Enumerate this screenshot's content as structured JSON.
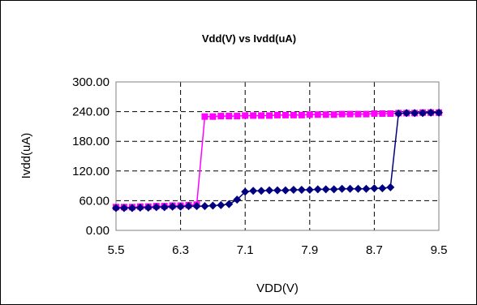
{
  "chart_data": {
    "type": "line",
    "title": "Vdd(V) vs Ivdd(uA)",
    "xlabel": "VDD(V)",
    "ylabel": "Ivdd(uA)",
    "xlim": [
      5.5,
      9.5
    ],
    "ylim": [
      0,
      300
    ],
    "x_ticks": [
      "5.5",
      "6.3",
      "7.1",
      "7.9",
      "8.7",
      "9.5"
    ],
    "y_ticks": [
      "0.00",
      "60.00",
      "120.00",
      "180.00",
      "240.00",
      "300.00"
    ],
    "grid": "dashed",
    "legend": "none",
    "series": [
      {
        "color": "#ff00ff",
        "marker": "square",
        "x": [
          5.5,
          5.6,
          5.7,
          5.8,
          5.9,
          6.0,
          6.1,
          6.2,
          6.3,
          6.4,
          6.5,
          6.6,
          6.7,
          6.8,
          6.9,
          7.0,
          7.1,
          7.2,
          7.3,
          7.4,
          7.5,
          7.6,
          7.7,
          7.8,
          7.9,
          8.0,
          8.1,
          8.2,
          8.3,
          8.4,
          8.5,
          8.6,
          8.7,
          8.8,
          8.9,
          9.0,
          9.1,
          9.2,
          9.3,
          9.4,
          9.5
        ],
        "y": [
          47,
          47,
          47,
          48,
          48,
          49,
          49,
          50,
          50,
          51,
          52,
          230,
          230,
          231,
          231,
          231,
          232,
          232,
          232,
          232,
          233,
          233,
          233,
          233,
          234,
          234,
          234,
          234,
          235,
          235,
          235,
          235,
          236,
          236,
          236,
          237,
          237,
          237,
          238,
          238,
          238
        ]
      },
      {
        "color": "#000080",
        "marker": "diamond",
        "x": [
          5.5,
          5.6,
          5.7,
          5.8,
          5.9,
          6.0,
          6.1,
          6.2,
          6.3,
          6.4,
          6.5,
          6.6,
          6.7,
          6.8,
          6.9,
          7.0,
          7.1,
          7.2,
          7.3,
          7.4,
          7.5,
          7.6,
          7.7,
          7.8,
          7.9,
          8.0,
          8.1,
          8.2,
          8.3,
          8.4,
          8.5,
          8.6,
          8.7,
          8.8,
          8.9,
          9.0,
          9.1,
          9.2,
          9.3,
          9.4,
          9.5
        ],
        "y": [
          45,
          45,
          45,
          46,
          46,
          47,
          47,
          48,
          48,
          49,
          49,
          49,
          50,
          51,
          53,
          62,
          78,
          80,
          80,
          81,
          81,
          81,
          82,
          82,
          82,
          83,
          83,
          83,
          84,
          84,
          84,
          84,
          85,
          85,
          87,
          236,
          237,
          237,
          237,
          238,
          238
        ]
      }
    ]
  }
}
